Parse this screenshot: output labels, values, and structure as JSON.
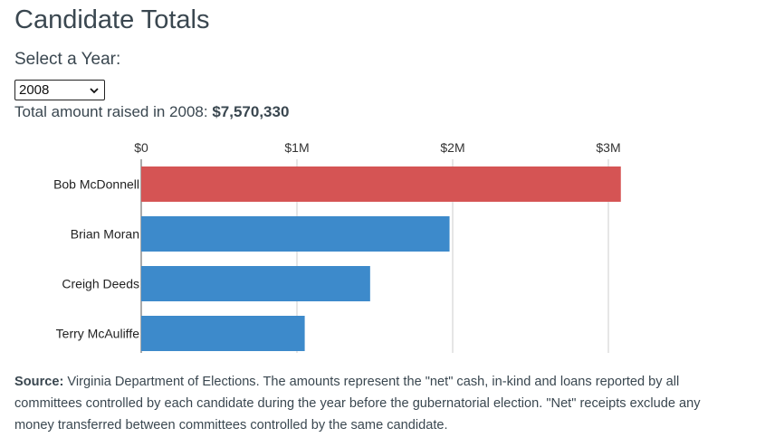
{
  "page": {
    "title": "Candidate Totals",
    "year_label": "Select a Year:",
    "total_prefix": "Total amount raised in 2008:",
    "total_amount": "$7,570,330"
  },
  "year_select": {
    "selected": "2008"
  },
  "source": {
    "label": "Source:",
    "text": "Virginia Department of Elections. The amounts represent the \"net\" cash, in-kind and loans reported by all committees controlled by each candidate during the year before the gubernatorial election. \"Net\" receipts exclude any money transferred between committees controlled by the same candidate."
  },
  "colors": {
    "republican": "#d55454",
    "democrat": "#3d8acb",
    "gridline": "#cccccc",
    "text": "#3a4750"
  },
  "chart_data": {
    "type": "bar",
    "orientation": "horizontal",
    "categories": [
      "Bob McDonnell",
      "Brian Moran",
      "Creigh Deeds",
      "Terry McAuliffe"
    ],
    "values": [
      3080000,
      1980000,
      1470000,
      1050000
    ],
    "bar_colors": [
      "#d55454",
      "#3d8acb",
      "#3d8acb",
      "#3d8acb"
    ],
    "xlim": [
      0,
      3000000
    ],
    "x_ticks": [
      0,
      1000000,
      2000000,
      3000000
    ],
    "x_tick_labels": [
      "$0",
      "$1M",
      "$2M",
      "$3M"
    ],
    "tick_position": "top",
    "grid": true,
    "title": "",
    "xlabel": "",
    "ylabel": ""
  }
}
